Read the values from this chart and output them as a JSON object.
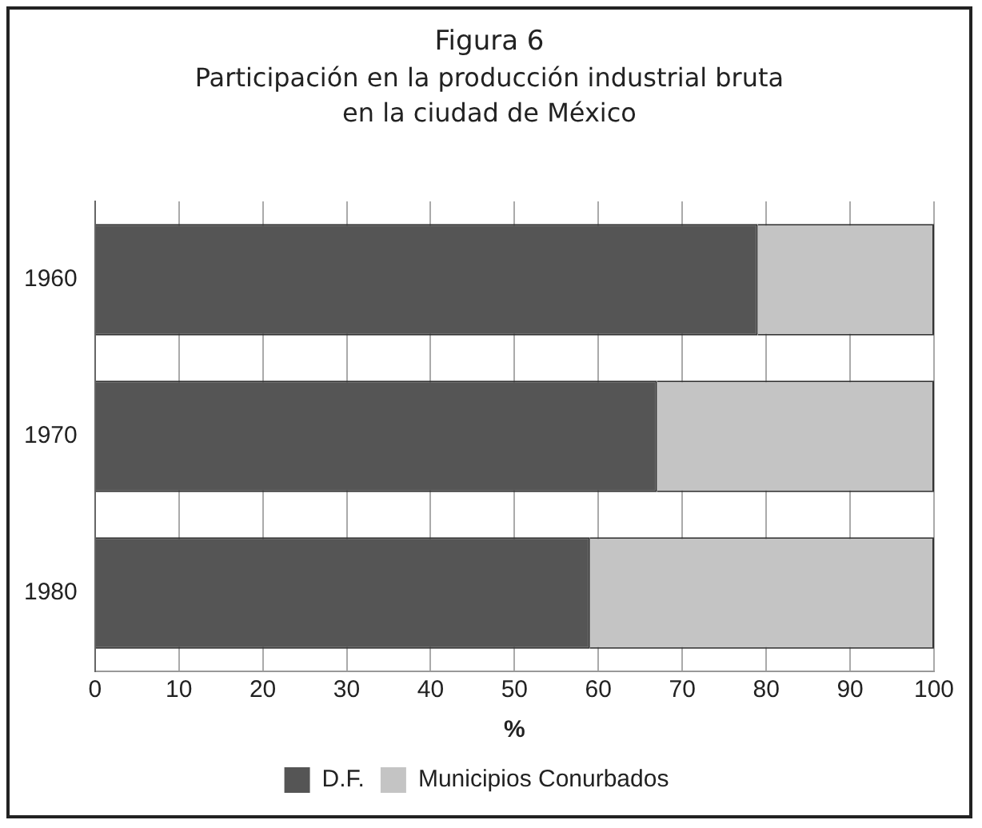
{
  "chart_data": {
    "type": "bar",
    "title": "Figura 6",
    "subtitle": "Participación en la producción industrial bruta en la ciudad de México",
    "xlabel": "%",
    "orientation": "horizontal",
    "stacked": true,
    "categories": [
      "1960",
      "1970",
      "1980"
    ],
    "series": [
      {
        "name": "D.F.",
        "color": "#555555",
        "values": [
          79,
          67,
          59
        ]
      },
      {
        "name": "Municipios Conurbados",
        "color": "#c4c4c4",
        "values": [
          21,
          33,
          41
        ]
      }
    ],
    "xlim": [
      0,
      100
    ],
    "xticks": [
      0,
      10,
      20,
      30,
      40,
      50,
      60,
      70,
      80,
      90,
      100
    ],
    "grid": "x",
    "legend": "bottom"
  }
}
